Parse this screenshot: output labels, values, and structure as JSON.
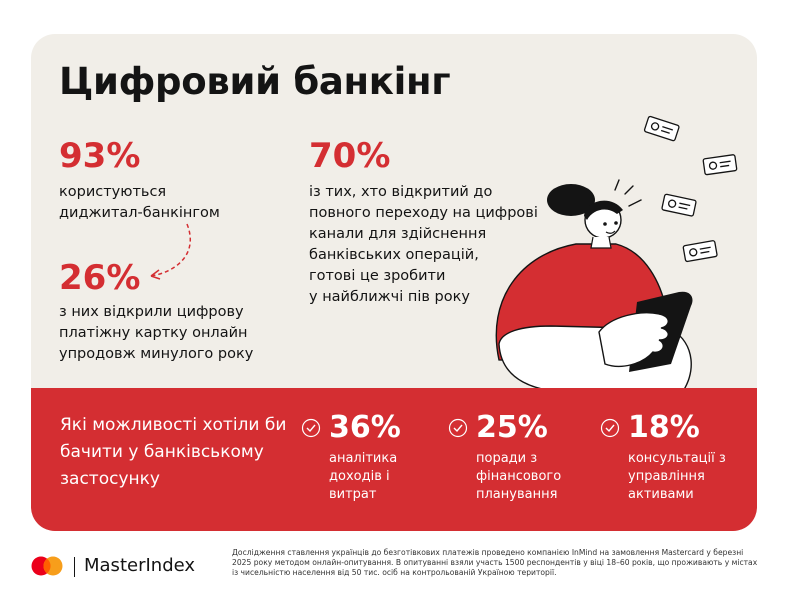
{
  "title": "Цифровий банкінг",
  "stats_left": [
    {
      "percent": "93%",
      "text": "користуються\nдиджитал-банкінгом"
    },
    {
      "percent": "26%",
      "text": "з них відкрили цифрову\nплатіжну картку онлайн\nупродовж минулого року"
    }
  ],
  "stat_right": {
    "percent": "70%",
    "text": "із тих, хто відкритий до\nповного переходу на цифрові\nканали для здійснення\nбанківських операцій,\nготові це зробити\nу найближчі пів року"
  },
  "band": {
    "question": "Які можливості хотіли би\nбачити у банківському\nзастосунку",
    "items": [
      {
        "percent": "36%",
        "text": "аналітика\nдоходів і\nвитрат"
      },
      {
        "percent": "25%",
        "text": "поради з\nфінансового\nпланування"
      },
      {
        "percent": "18%",
        "text": "консультації з\nуправління\nактивами"
      }
    ]
  },
  "footer": {
    "brand": "MasterIndex",
    "note": "Дослідження ставлення українців до безготівкових платежів проведено компанією InMind на замовлення Mastercard у березні 2025 року методом онлайн-опитування. В опитуванні взяли участь 1500 респондентів у віці 18–60 років, що проживають у містах із чисельністю населення від 50 тис. осіб на контрольованій Україною території."
  },
  "colors": {
    "accent": "#d42e32",
    "card_bg": "#f1eee8",
    "text": "#141414",
    "mc_red": "#eb001b",
    "mc_orange": "#f79e1b"
  }
}
